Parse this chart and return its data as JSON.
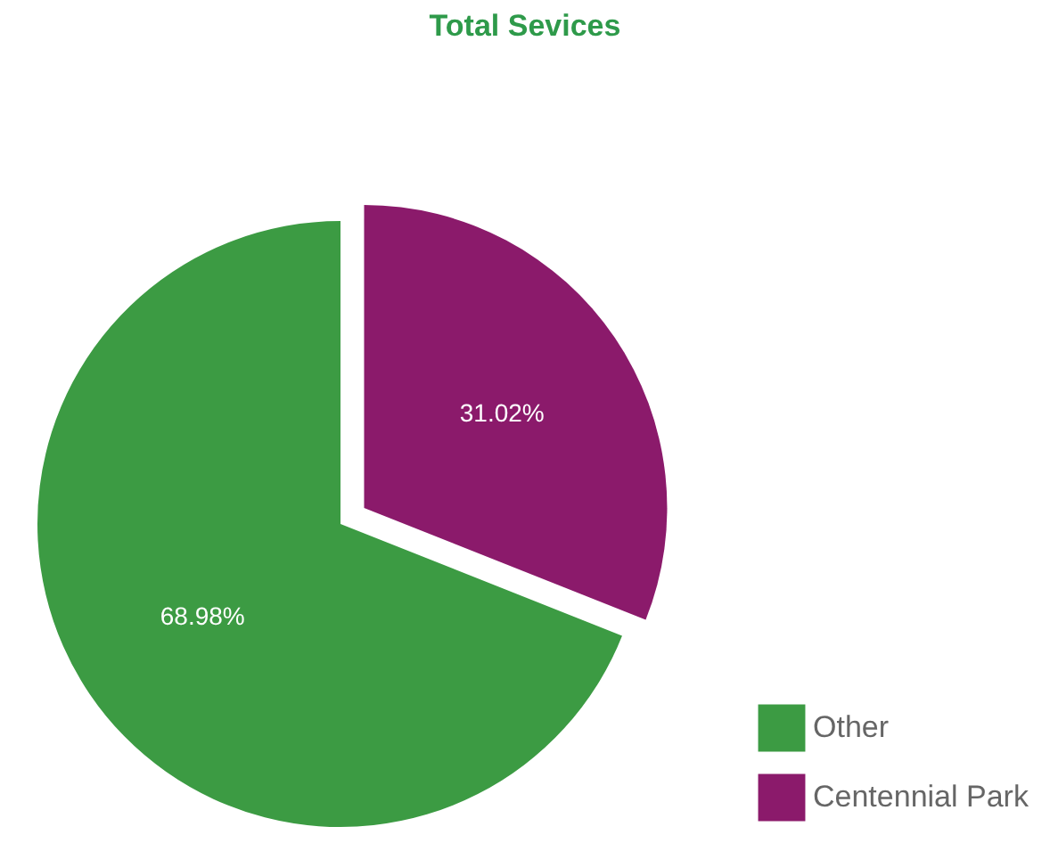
{
  "chart_data": {
    "type": "pie",
    "title": "Total Sevices",
    "categories": [
      "Other",
      "Centennial Park"
    ],
    "values": [
      68.98,
      31.02
    ],
    "value_labels": [
      "68.98%",
      "31.02%"
    ],
    "colors": [
      "#3c9b43",
      "#8b1a6b"
    ],
    "legend": "bottom right"
  }
}
